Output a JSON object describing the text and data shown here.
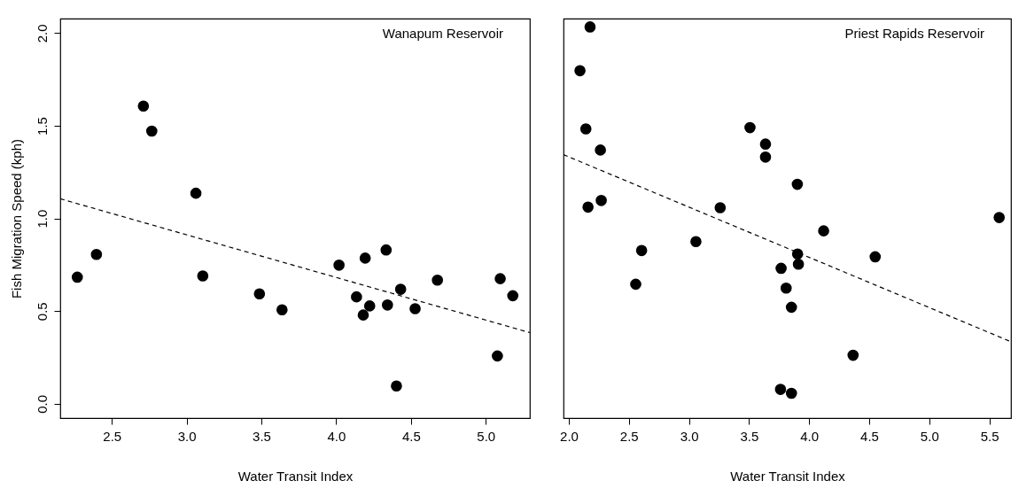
{
  "chart_data": [
    {
      "type": "scatter",
      "title": "Wanapum Reservoir",
      "xlabel": "Water Transit Index",
      "ylabel": "Fish Migration Speed (kph)",
      "xlim": [
        2.155,
        5.295
      ],
      "xticks": [
        2.5,
        {
          "value": 3,
          "label": "3.0"
        },
        3.5,
        {
          "value": 4,
          "label": "4.0"
        },
        4.5,
        {
          "value": 5,
          "label": "5.0"
        }
      ],
      "ylim": [
        -0.077,
        2.078
      ],
      "yticks": [
        {
          "value": 0,
          "label": "0.0"
        },
        0.5,
        {
          "value": 1,
          "label": "1.0"
        },
        1.5,
        {
          "value": 2,
          "label": "2.0"
        }
      ],
      "grid": false,
      "series": [
        {
          "marker": "circle",
          "color": "#000000",
          "x": [
            2.269,
            2.397,
            2.711,
            2.767,
            3.062,
            3.108,
            3.487,
            3.638,
            4.019,
            4.194,
            4.334,
            4.136,
            4.224,
            4.181,
            4.343,
            4.431,
            4.528,
            4.677,
            5.097,
            5.181,
            5.078,
            4.403
          ],
          "values": [
            0.683,
            0.806,
            1.606,
            1.471,
            1.136,
            0.69,
            0.593,
            0.507,
            0.748,
            0.786,
            0.83,
            0.577,
            0.528,
            0.479,
            0.533,
            0.618,
            0.513,
            0.667,
            0.675,
            0.583,
            0.258,
            0.096
          ]
        },
        {
          "type": "line",
          "marker": "none",
          "line_style": "dashed",
          "color": "#000000",
          "x": [
            2.155,
            5.295
          ],
          "values": [
            1.106,
            0.384
          ]
        }
      ]
    },
    {
      "type": "scatter",
      "title": "Priest Rapids Reservoir",
      "xlabel": "Water Transit Index",
      "tick_labels": "x",
      "xlim": [
        1.956,
        5.68
      ],
      "xticks": [
        {
          "value": 2,
          "label": "2.0"
        },
        2.5,
        {
          "value": 3,
          "label": "3.0"
        },
        3.5,
        {
          "value": 4,
          "label": "4.0"
        },
        4.5,
        {
          "value": 5,
          "label": "5.0"
        },
        5.5
      ],
      "ylim": [
        -0.077,
        2.078
      ],
      "grid": false,
      "series": [
        {
          "marker": "circle",
          "color": "#000000",
          "x": [
            2.177,
            2.093,
            2.142,
            2.263,
            2.16,
            2.27,
            2.606,
            2.557,
            3.058,
            3.26,
            3.508,
            3.637,
            3.637,
            3.902,
            4.121,
            3.904,
            3.911,
            3.767,
            3.809,
            3.853,
            4.55,
            4.366,
            3.762,
            3.853,
            5.582
          ],
          "values": [
            2.033,
            1.797,
            1.483,
            1.369,
            1.061,
            1.097,
            0.827,
            0.645,
            0.875,
            1.058,
            1.49,
            1.401,
            1.331,
            1.184,
            0.933,
            0.808,
            0.753,
            0.731,
            0.624,
            0.521,
            0.793,
            0.262,
            0.078,
            0.057,
            1.005
          ]
        },
        {
          "type": "line",
          "marker": "none",
          "line_style": "dashed",
          "color": "#000000",
          "x": [
            1.956,
            5.68
          ],
          "values": [
            1.344,
            0.335
          ]
        }
      ]
    }
  ]
}
